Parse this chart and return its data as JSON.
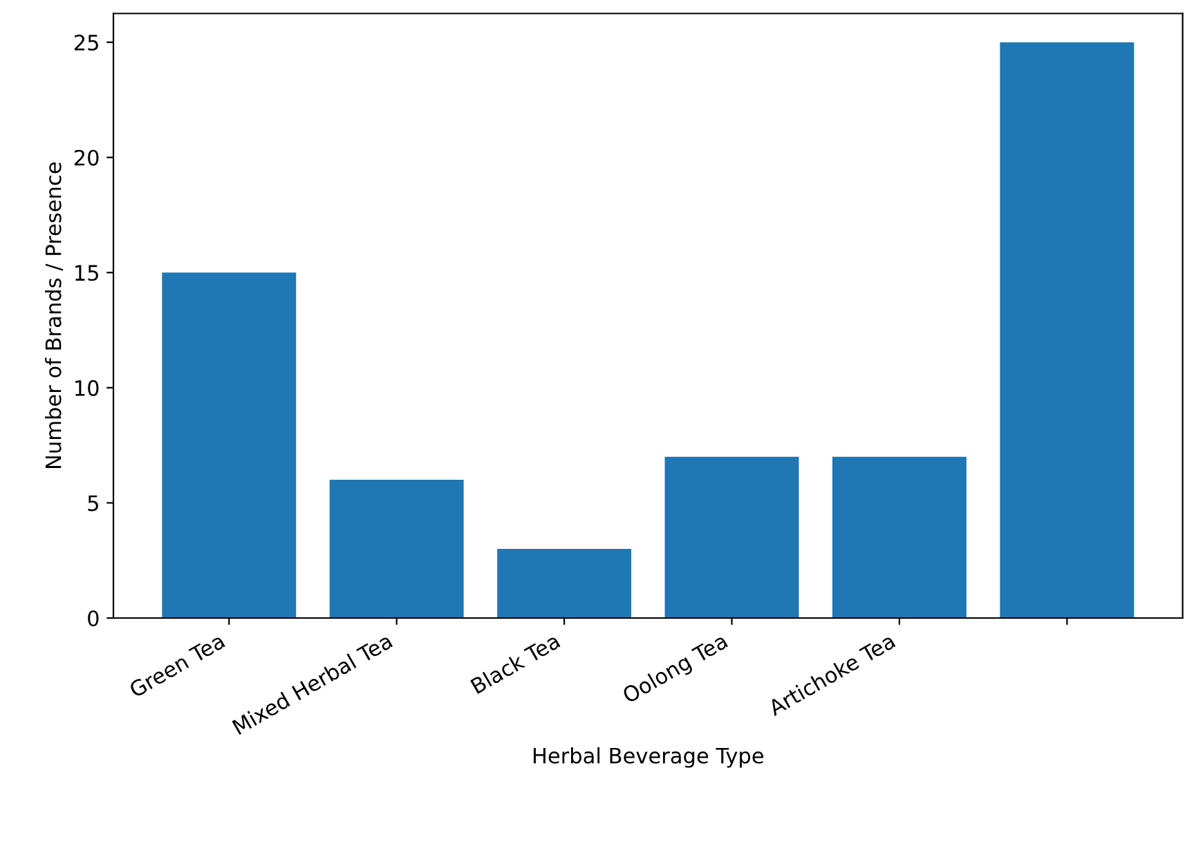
{
  "chart_data": {
    "type": "bar",
    "xlabel": "Herbal Beverage Type",
    "ylabel": "Number of Brands / Presence",
    "categories": [
      "Green Tea",
      "Mixed Herbal Tea",
      "Black Tea",
      "Oolong Tea",
      "Artichoke Tea",
      null
    ],
    "values": [
      15,
      6,
      3,
      7,
      7,
      25
    ],
    "color": "#1f77b4",
    "ylim": [
      0,
      26.25
    ],
    "yticks": [
      0,
      5,
      10,
      15,
      20,
      25
    ],
    "grid": false
  }
}
